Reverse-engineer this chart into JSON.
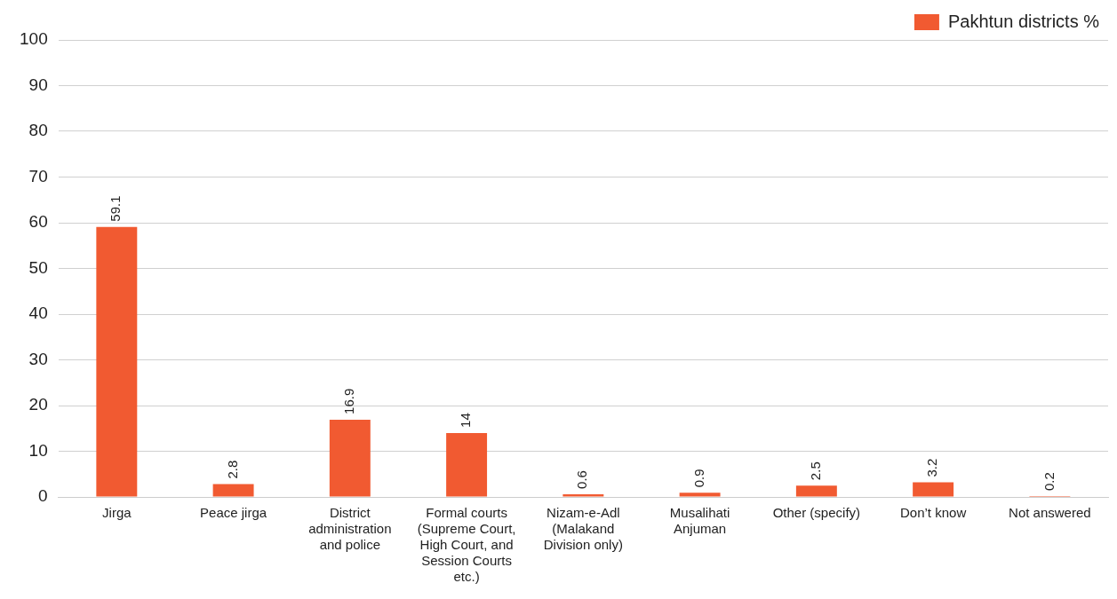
{
  "chart_data": {
    "type": "bar",
    "categories": [
      "Jirga",
      "Peace jirga",
      "District administration and police",
      "Formal courts (Supreme Court, High Court, and Session Courts etc.)",
      "Nizam-e-Adl (Malakand Division only)",
      "Musalihati Anjuman",
      "Other (specify)",
      "Don’t know",
      "Not answered"
    ],
    "series": [
      {
        "name": "Pakhtun districts %",
        "color": "#f15a31",
        "values": [
          59.1,
          2.8,
          16.9,
          14,
          0.6,
          0.9,
          2.5,
          3.2,
          0.2
        ]
      }
    ],
    "ylim": [
      0,
      100
    ],
    "yticks": [
      0,
      10,
      20,
      30,
      40,
      50,
      60,
      70,
      80,
      90,
      100
    ],
    "grid": "y",
    "legend": "top right",
    "data_labels": true
  }
}
